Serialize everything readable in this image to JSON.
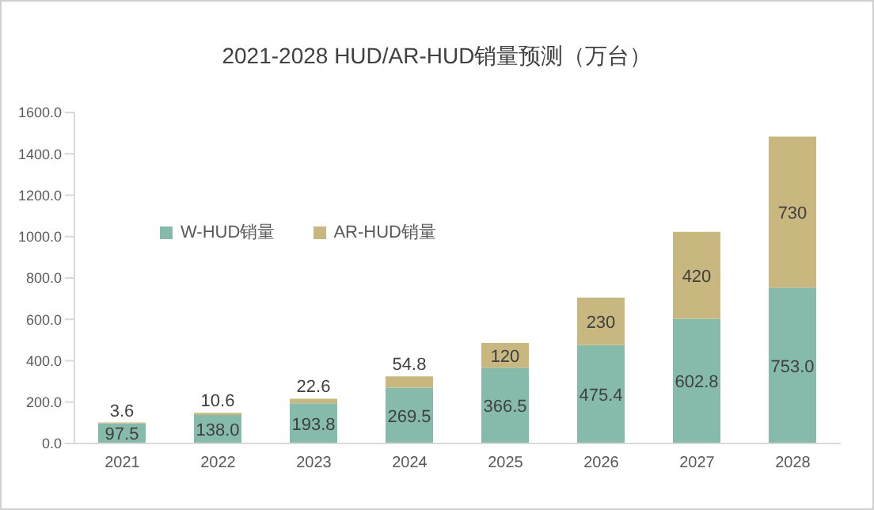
{
  "chart_data": {
    "type": "bar",
    "title": "2021-2028 HUD/AR-HUD销量预测（万台）",
    "categories": [
      "2021",
      "2022",
      "2023",
      "2024",
      "2025",
      "2026",
      "2027",
      "2028"
    ],
    "stacked": true,
    "series": [
      {
        "name": "W-HUD销量",
        "color": "#86bbab",
        "values": [
          97.5,
          138.0,
          193.8,
          269.5,
          366.5,
          475.4,
          602.8,
          753.0
        ],
        "value_labels": [
          "97.5",
          "138.0",
          "193.8",
          "269.5",
          "366.5",
          "475.4",
          "602.8",
          "753.0"
        ]
      },
      {
        "name": "AR-HUD销量",
        "color": "#c8b87f",
        "values": [
          3.6,
          10.6,
          22.6,
          54.8,
          120,
          230,
          420,
          730
        ],
        "value_labels": [
          "3.6",
          "10.6",
          "22.6",
          "54.8",
          "120",
          "230",
          "420",
          "730"
        ]
      }
    ],
    "ylim": [
      0,
      1600
    ],
    "yticks": [
      {
        "value": 0,
        "label": "0.0"
      },
      {
        "value": 200,
        "label": "200.0"
      },
      {
        "value": 400,
        "label": "400.0"
      },
      {
        "value": 600,
        "label": "600.0"
      },
      {
        "value": 800,
        "label": "800.0"
      },
      {
        "value": 1000,
        "label": "1000.0"
      },
      {
        "value": 1200,
        "label": "1200.0"
      },
      {
        "value": 1400,
        "label": "1400.0"
      },
      {
        "value": 1600,
        "label": "1600.0"
      }
    ],
    "grid": false,
    "legend": "top left"
  }
}
